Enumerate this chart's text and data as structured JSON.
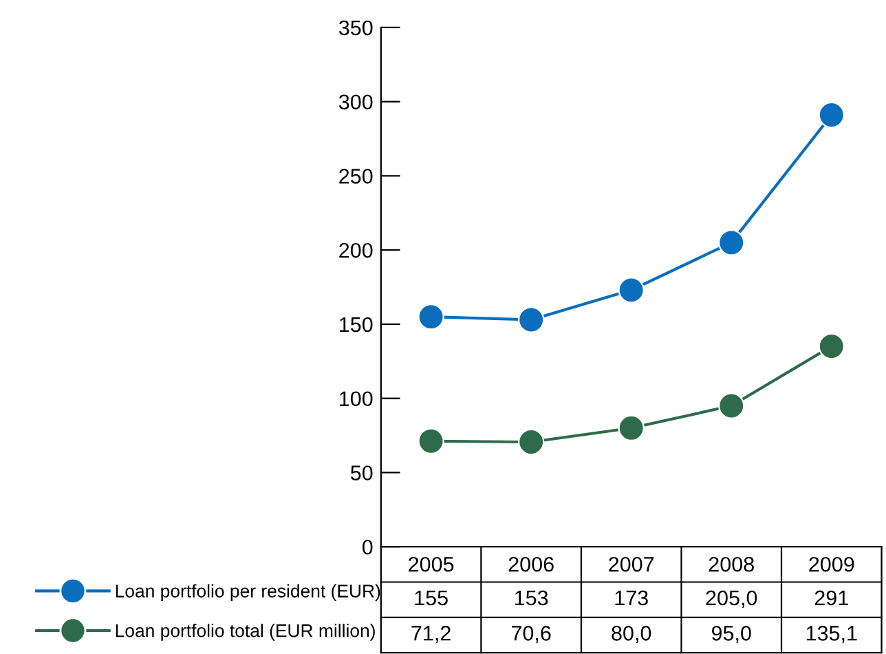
{
  "chart_data": {
    "type": "line",
    "categories": [
      "2005",
      "2006",
      "2007",
      "2008",
      "2009"
    ],
    "series": [
      {
        "name": "Loan portfolio per resident (EUR)",
        "color": "#0a6ebd",
        "values": [
          155,
          153,
          173,
          205.0,
          291
        ],
        "value_labels": [
          "155",
          "153",
          "173",
          "205,0",
          "291"
        ]
      },
      {
        "name": "Loan portfolio total (EUR million)",
        "color": "#2e6b4a",
        "values": [
          71.2,
          70.6,
          80.0,
          95.0,
          135.1
        ],
        "value_labels": [
          "71,2",
          "70,6",
          "80,0",
          "95,0",
          "135,1"
        ]
      }
    ],
    "ylim": [
      0,
      350
    ],
    "yticks": [
      0,
      50,
      100,
      150,
      200,
      250,
      300,
      350
    ],
    "grid": false,
    "legend": "bottom left",
    "marker": "circle",
    "line_style": "solid"
  }
}
